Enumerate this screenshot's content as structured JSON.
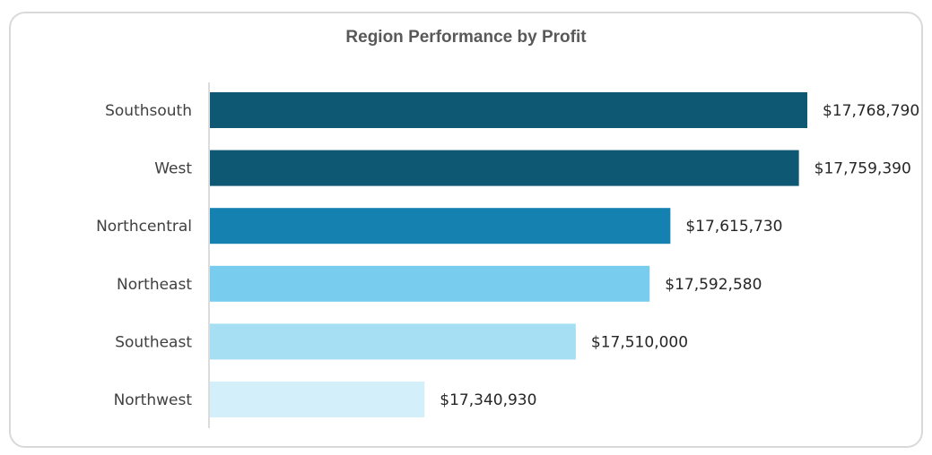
{
  "chart_data": {
    "type": "bar",
    "orientation": "horizontal",
    "title": "Region Performance by Profit",
    "xlabel": "",
    "ylabel": "",
    "grid": false,
    "legend": "none",
    "xlim": [
      17100000,
      17800000
    ],
    "categories": [
      "Southsouth",
      "West",
      "Northcentral",
      "Northeast",
      "Southeast",
      "Northwest"
    ],
    "values": [
      17768790,
      17759390,
      17615730,
      17592580,
      17510000,
      17340930
    ],
    "value_labels": [
      "$17,768,790",
      "$17,759,390",
      "$17,615,730",
      "$17,592,580",
      "$17,510,000",
      "$17,340,930"
    ],
    "colors": [
      "#0e5873",
      "#0e5873",
      "#1581b0",
      "#78cdee",
      "#a6dff3",
      "#d3eff9"
    ]
  }
}
